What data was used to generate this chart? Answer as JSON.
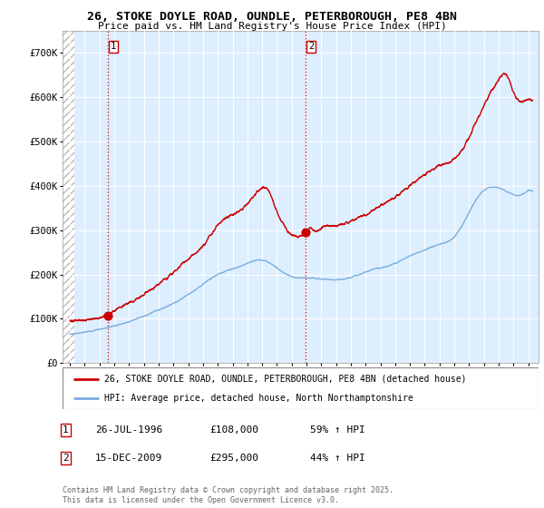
{
  "title_line1": "26, STOKE DOYLE ROAD, OUNDLE, PETERBOROUGH, PE8 4BN",
  "title_line2": "Price paid vs. HM Land Registry's House Price Index (HPI)",
  "ylim": [
    0,
    750000
  ],
  "yticks": [
    0,
    100000,
    200000,
    300000,
    400000,
    500000,
    600000,
    700000
  ],
  "ytick_labels": [
    "£0",
    "£100K",
    "£200K",
    "£300K",
    "£400K",
    "£500K",
    "£600K",
    "£700K"
  ],
  "xlim_start": 1993.5,
  "xlim_end": 2025.7,
  "sale1_year": 1996.57,
  "sale1_price": 108000,
  "sale2_year": 2009.96,
  "sale2_price": 295000,
  "legend_line1": "26, STOKE DOYLE ROAD, OUNDLE, PETERBOROUGH, PE8 4BN (detached house)",
  "legend_line2": "HPI: Average price, detached house, North Northamptonshire",
  "annot1_date": "26-JUL-1996",
  "annot1_price": "£108,000",
  "annot1_hpi": "59% ↑ HPI",
  "annot2_date": "15-DEC-2009",
  "annot2_price": "£295,000",
  "annot2_hpi": "44% ↑ HPI",
  "footer": "Contains HM Land Registry data © Crown copyright and database right 2025.\nThis data is licensed under the Open Government Licence v3.0.",
  "red_color": "#cc0000",
  "blue_color": "#7aaddd",
  "bg_color": "#ddeeff",
  "hatch_xlim_end": 1994.3
}
